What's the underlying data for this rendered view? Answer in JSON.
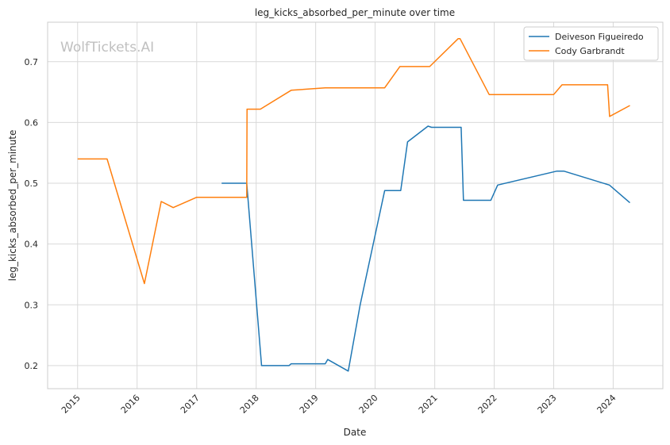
{
  "chart_data": {
    "type": "line",
    "title": "leg_kicks_absorbed_per_minute over time",
    "xlabel": "Date",
    "ylabel": "leg_kicks_absorbed_per_minute",
    "watermark": "WolfTickets.AI",
    "xlim": [
      "2014-07-01",
      "2024-11-01"
    ],
    "ylim": [
      0.162,
      0.765
    ],
    "x_ticks": [
      "2015",
      "2016",
      "2017",
      "2018",
      "2019",
      "2020",
      "2021",
      "2022",
      "2023",
      "2024"
    ],
    "y_ticks": [
      "0.2",
      "0.3",
      "0.4",
      "0.5",
      "0.6",
      "0.7"
    ],
    "grid": true,
    "legend_position": "top-right",
    "series": [
      {
        "name": "Deiveson Figueiredo",
        "color": "#1f77b4",
        "x": [
          "2017-06-03",
          "2017-10-28",
          "2017-11-04",
          "2018-02-03",
          "2018-07-21",
          "2018-08-04",
          "2019-03-01",
          "2019-03-16",
          "2019-07-20",
          "2019-10-01",
          "2020-02-29",
          "2020-06-06",
          "2020-07-18",
          "2020-11-21",
          "2020-12-12",
          "2021-06-12",
          "2021-06-26",
          "2021-12-11",
          "2022-01-22",
          "2023-01-21",
          "2023-03-04",
          "2023-12-09",
          "2024-04-13"
        ],
        "y": [
          0.5,
          0.5,
          0.5,
          0.2,
          0.2,
          0.203,
          0.203,
          0.21,
          0.191,
          0.3,
          0.488,
          0.488,
          0.568,
          0.594,
          0.592,
          0.592,
          0.472,
          0.472,
          0.497,
          0.52,
          0.52,
          0.497,
          0.468
        ]
      },
      {
        "name": "Cody Garbrandt",
        "color": "#ff7f0e",
        "x": [
          "2015-01-01",
          "2015-07-01",
          "2016-02-15",
          "2016-05-28",
          "2016-08-10",
          "2017-01-01",
          "2017-11-04",
          "2017-11-06",
          "2018-01-27",
          "2018-08-04",
          "2019-03-01",
          "2020-02-29",
          "2020-06-01",
          "2020-12-01",
          "2021-05-25",
          "2021-06-05",
          "2021-12-01",
          "2023-01-01",
          "2023-02-21",
          "2023-11-28",
          "2023-12-10",
          "2024-04-13"
        ],
        "y": [
          0.54,
          0.54,
          0.335,
          0.47,
          0.46,
          0.477,
          0.477,
          0.622,
          0.622,
          0.653,
          0.657,
          0.657,
          0.692,
          0.692,
          0.738,
          0.738,
          0.646,
          0.646,
          0.662,
          0.662,
          0.61,
          0.628
        ]
      }
    ]
  }
}
